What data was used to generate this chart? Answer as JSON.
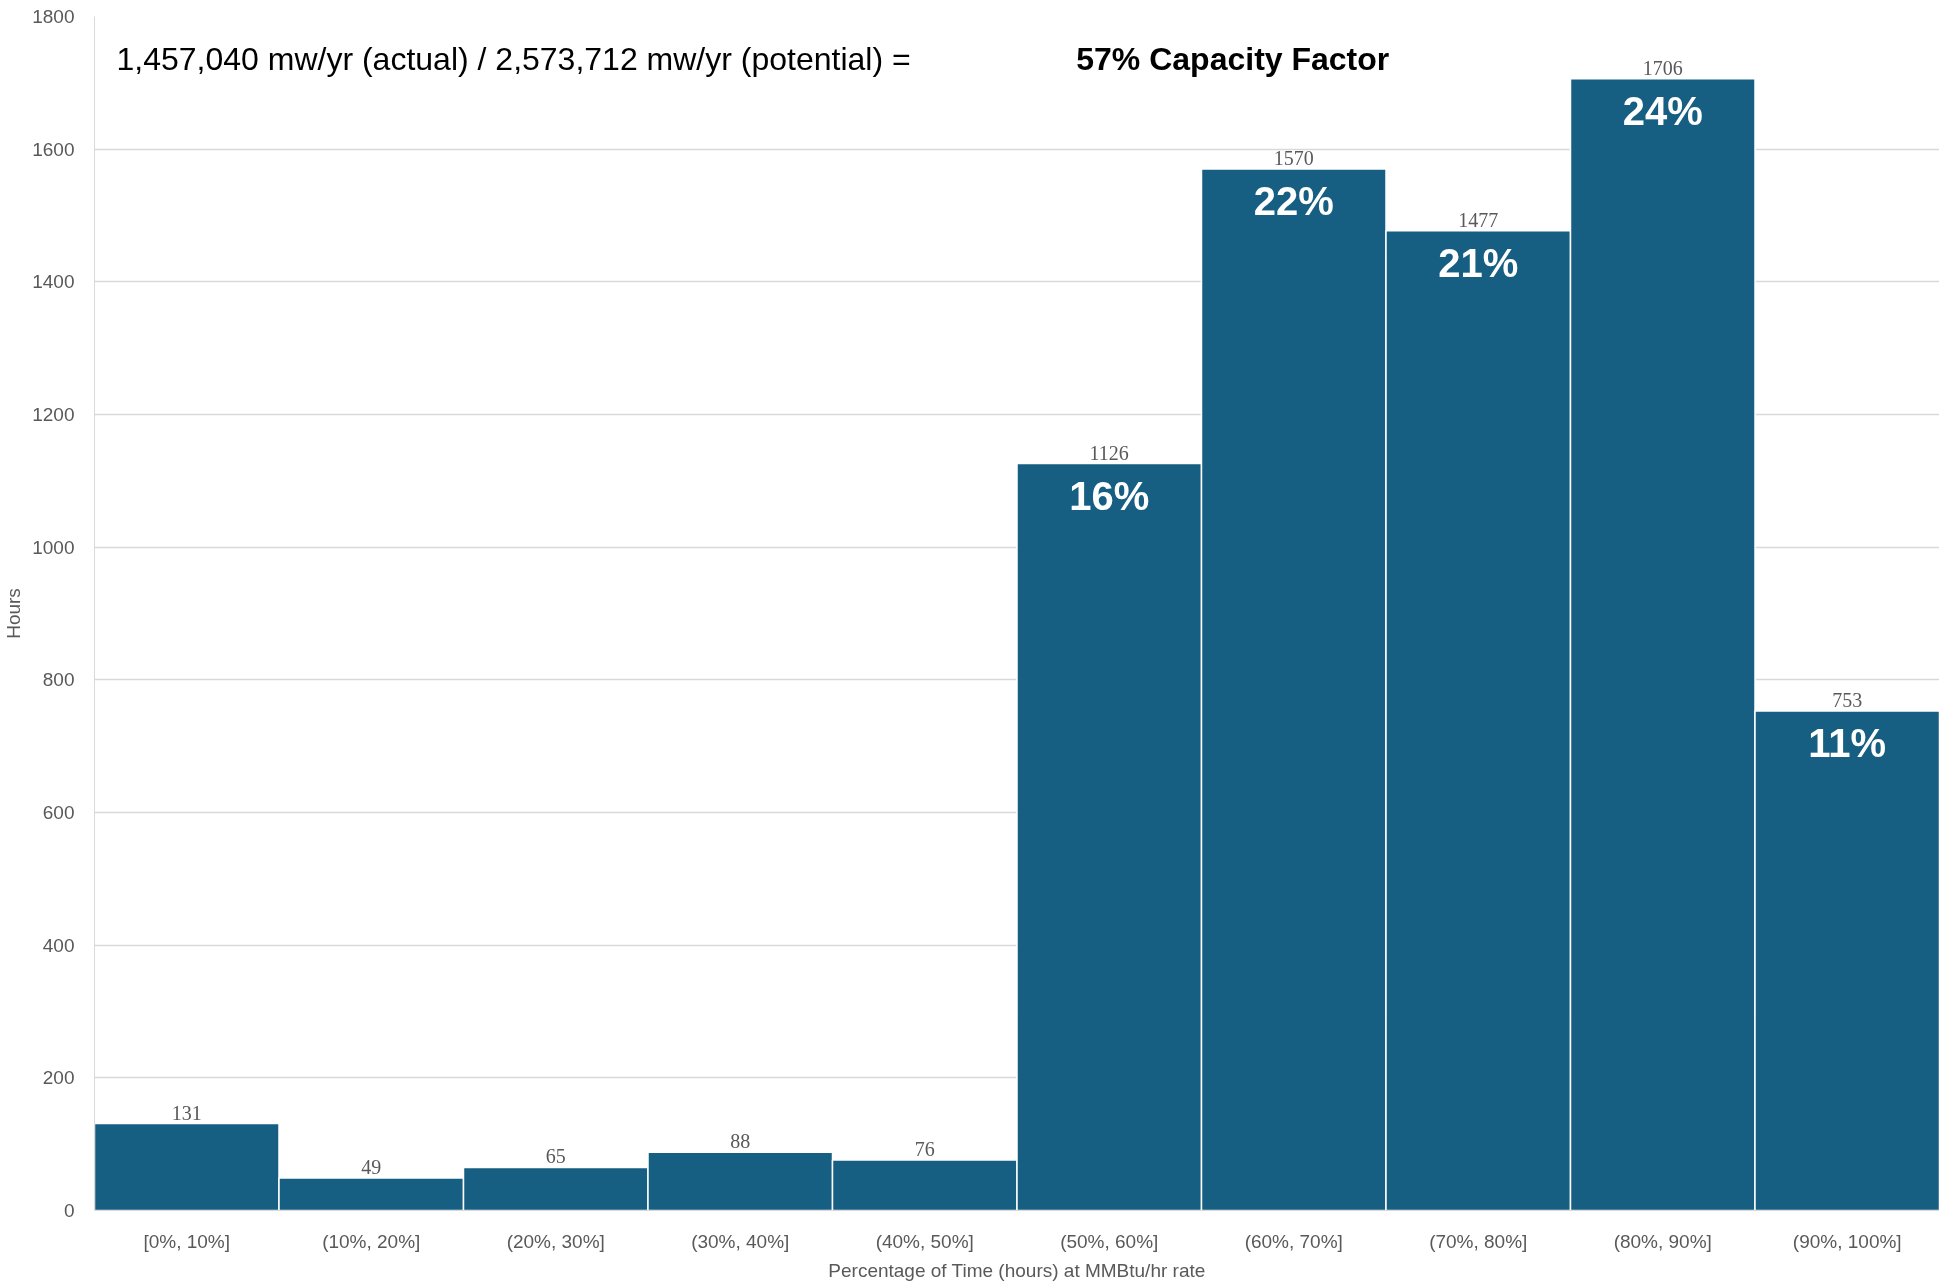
{
  "chart_data": {
    "type": "bar",
    "xlabel": "Percentage of Time (hours) at MMBtu/hr rate",
    "ylabel": "Hours",
    "categories": [
      "[0%, 10%]",
      "(10%, 20%]",
      "(20%, 30%]",
      "(30%, 40%]",
      "(40%, 50%]",
      "(50%, 60%]",
      "(60%, 70%]",
      "(70%, 80%]",
      "(80%, 90%]",
      "(90%, 100%]"
    ],
    "values": [
      131,
      49,
      65,
      88,
      76,
      1126,
      1570,
      1477,
      1706,
      753
    ],
    "color": "#175e83",
    "ylim": [
      0,
      1800
    ],
    "yticks": [
      0,
      200,
      400,
      600,
      800,
      1000,
      1200,
      1400,
      1600,
      1800
    ],
    "grid": "y",
    "data_labels": true,
    "annotations": [
      "1,457,040 mw/yr (actual) / 2,573,712 mw/yr (potential) =",
      "57% Capacity Factor",
      {
        "text": "16%",
        "x": "(50%, 60%]",
        "y": 1126
      },
      {
        "text": "22%",
        "x": "(60%, 70%]",
        "y": 1570
      },
      {
        "text": "21%",
        "x": "(70%, 80%]",
        "y": 1477
      },
      {
        "text": "24%",
        "x": "(80%, 90%]",
        "y": 1706
      },
      {
        "text": "11%",
        "x": "(90%, 100%]",
        "y": 753
      }
    ]
  }
}
